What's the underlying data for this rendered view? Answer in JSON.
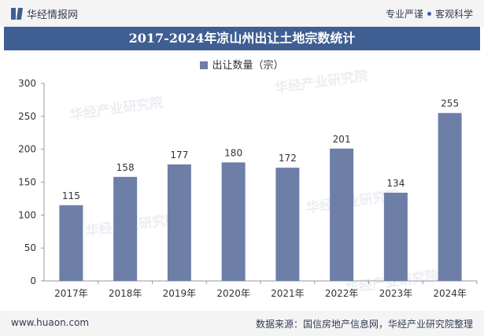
{
  "header": {
    "brand": "华经情报网",
    "tagline_left": "专业严谨",
    "tagline_right": "客观科学"
  },
  "watermark": "华经产业研究院",
  "footer": {
    "url": "www.huaon.com",
    "source": "数据来源：国信房地产信息网，华经产业研究院整理"
  },
  "colors": {
    "bar": "#6d7fa7",
    "title_bg": "#3f5f93"
  },
  "chart_data": {
    "type": "bar",
    "title": "2017-2024年凉山州出让土地宗数统计",
    "legend": "出让数量（宗）",
    "categories": [
      "2017年",
      "2018年",
      "2019年",
      "2020年",
      "2021年",
      "2022年",
      "2023年",
      "2024年"
    ],
    "values": [
      115,
      158,
      177,
      180,
      172,
      201,
      134,
      255
    ],
    "yticks": [
      0,
      50,
      100,
      150,
      200,
      250,
      300
    ],
    "ylim": [
      0,
      300
    ],
    "xlabel": "",
    "ylabel": "",
    "grid": false
  }
}
